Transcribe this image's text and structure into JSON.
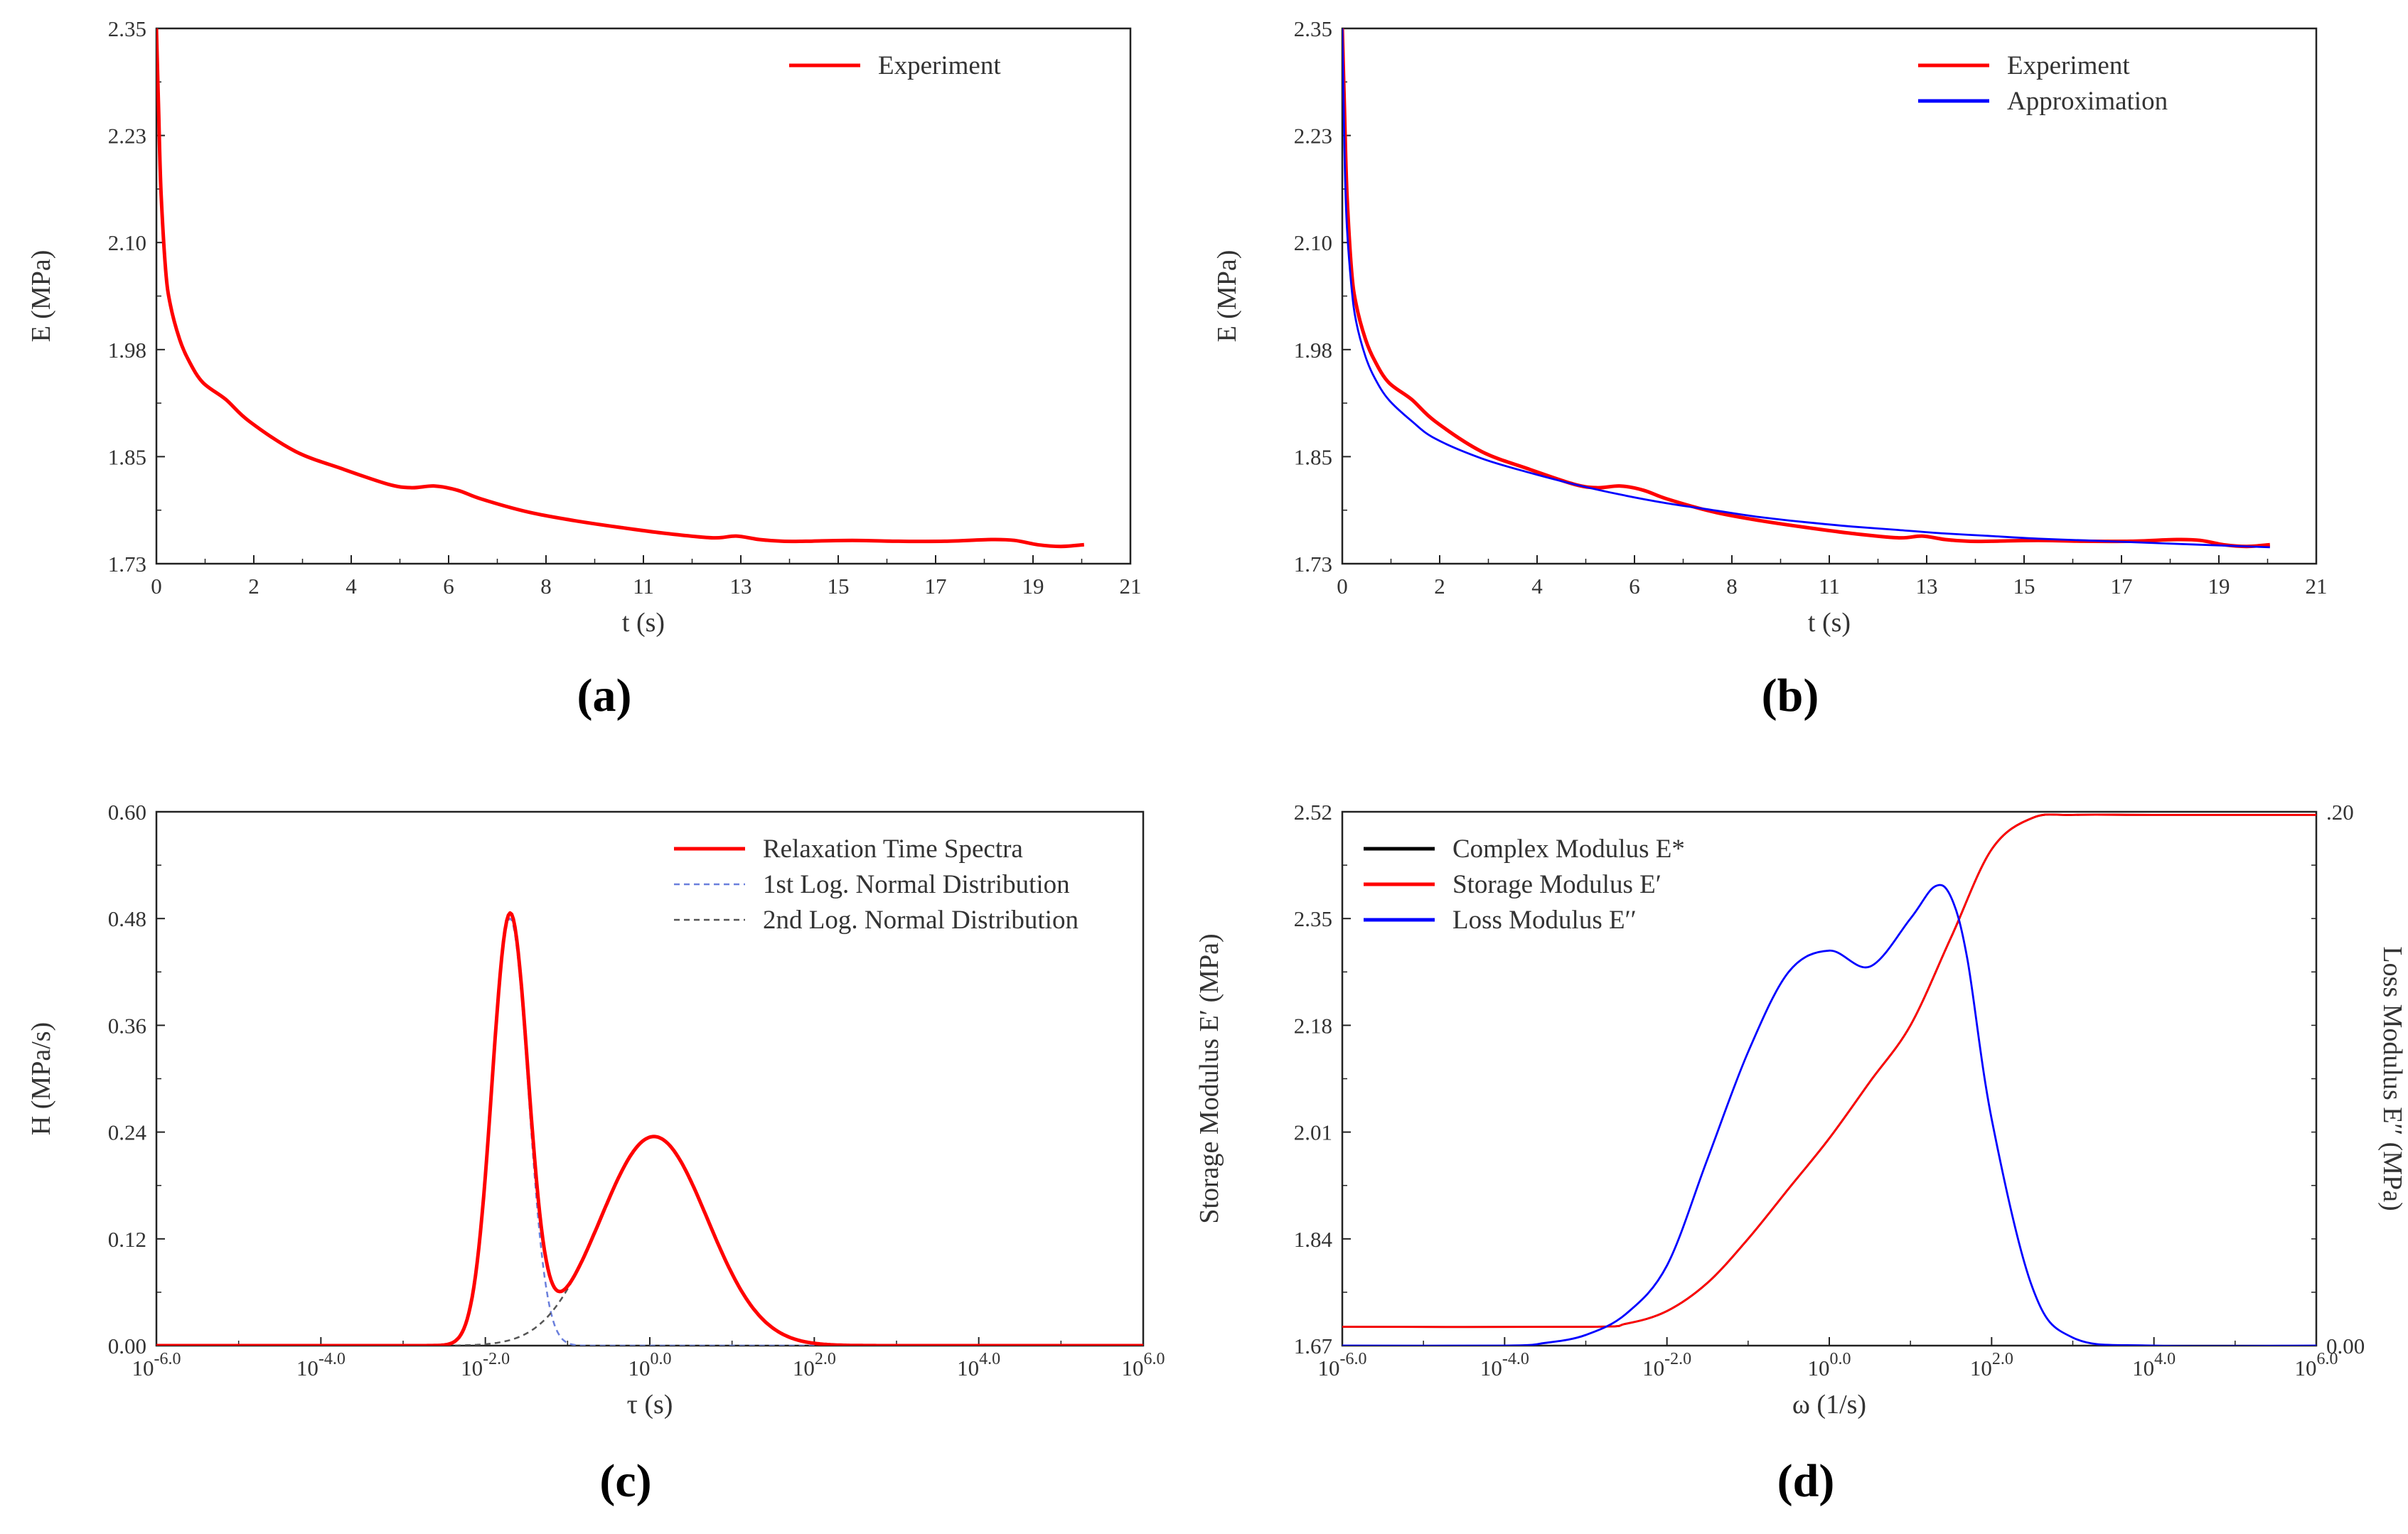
{
  "chart_data": [
    {
      "id": "a",
      "panel_label": "(a)",
      "type": "line",
      "xlabel": "t (s)",
      "ylabel": "E (MPa)",
      "xlim": [
        0,
        21
      ],
      "ylim": [
        1.73,
        2.35
      ],
      "xticks": [
        "0",
        "2",
        "4",
        "6",
        "8",
        "11",
        "13",
        "15",
        "17",
        "19",
        "21"
      ],
      "yticks": [
        "1.73",
        "1.85",
        "1.98",
        "2.10",
        "2.23",
        "2.35"
      ],
      "legend": [
        "Experiment"
      ],
      "legend_position": "top-right",
      "series": [
        {
          "name": "Experiment",
          "color": "#ff0000",
          "x": [
            0.0,
            0.05,
            0.1,
            0.2,
            0.3,
            0.5,
            0.7,
            1.0,
            1.5,
            2.0,
            3.0,
            4.0,
            5.0,
            5.5,
            6.0,
            6.5,
            7.0,
            8.0,
            9.0,
            10.0,
            11.0,
            12.0,
            12.5,
            13.0,
            13.5,
            14.0,
            15.0,
            16.0,
            17.0,
            18.0,
            18.5,
            19.0,
            19.5,
            20.0
          ],
          "y": [
            2.35,
            2.25,
            2.16,
            2.07,
            2.03,
            1.99,
            1.965,
            1.94,
            1.92,
            1.895,
            1.86,
            1.84,
            1.822,
            1.818,
            1.82,
            1.815,
            1.805,
            1.79,
            1.78,
            1.772,
            1.765,
            1.76,
            1.762,
            1.758,
            1.756,
            1.756,
            1.757,
            1.756,
            1.756,
            1.758,
            1.757,
            1.752,
            1.75,
            1.752
          ]
        }
      ]
    },
    {
      "id": "b",
      "panel_label": "(b)",
      "type": "line",
      "xlabel": "t (s)",
      "ylabel": "E (MPa)",
      "xlim": [
        0,
        21
      ],
      "ylim": [
        1.73,
        2.35
      ],
      "xticks": [
        "0",
        "2",
        "4",
        "6",
        "8",
        "11",
        "13",
        "15",
        "17",
        "19",
        "21"
      ],
      "yticks": [
        "1.73",
        "1.85",
        "1.98",
        "2.10",
        "2.23",
        "2.35"
      ],
      "legend": [
        "Experiment",
        "Approximation"
      ],
      "legend_position": "top-right",
      "series": [
        {
          "name": "Experiment",
          "color": "#ff0000",
          "x": [
            0.0,
            0.05,
            0.1,
            0.2,
            0.3,
            0.5,
            0.7,
            1.0,
            1.5,
            2.0,
            3.0,
            4.0,
            5.0,
            5.5,
            6.0,
            6.5,
            7.0,
            8.0,
            9.0,
            10.0,
            11.0,
            12.0,
            12.5,
            13.0,
            13.5,
            14.0,
            15.0,
            16.0,
            17.0,
            18.0,
            18.5,
            19.0,
            19.5,
            20.0
          ],
          "y": [
            2.35,
            2.25,
            2.16,
            2.07,
            2.03,
            1.99,
            1.965,
            1.94,
            1.92,
            1.895,
            1.86,
            1.84,
            1.822,
            1.818,
            1.82,
            1.815,
            1.805,
            1.79,
            1.78,
            1.772,
            1.765,
            1.76,
            1.762,
            1.758,
            1.756,
            1.756,
            1.757,
            1.756,
            1.756,
            1.758,
            1.757,
            1.752,
            1.75,
            1.752
          ]
        },
        {
          "name": "Approximation",
          "color": "#0000ff",
          "x": [
            0.0,
            0.05,
            0.1,
            0.2,
            0.3,
            0.5,
            0.7,
            1.0,
            1.5,
            2.0,
            3.0,
            4.0,
            5.0,
            6.0,
            7.0,
            8.0,
            9.0,
            10.0,
            11.0,
            12.0,
            13.0,
            14.0,
            15.0,
            16.0,
            17.0,
            18.0,
            19.0,
            20.0
          ],
          "y": [
            2.35,
            2.2,
            2.12,
            2.05,
            2.01,
            1.97,
            1.945,
            1.92,
            1.895,
            1.875,
            1.852,
            1.836,
            1.822,
            1.81,
            1.8,
            1.792,
            1.784,
            1.778,
            1.773,
            1.769,
            1.765,
            1.762,
            1.759,
            1.757,
            1.755,
            1.753,
            1.751,
            1.749
          ]
        }
      ]
    },
    {
      "id": "c",
      "panel_label": "(c)",
      "type": "line",
      "xscale": "log",
      "xlabel": "τ (s)",
      "ylabel": "H (MPa/s)",
      "xlim": [
        -6,
        6
      ],
      "ylim": [
        0,
        0.6
      ],
      "xticks": [
        "10-6.0",
        "10-4.0",
        "10-2.0",
        "100.0",
        "102.0",
        "104.0",
        "106.0"
      ],
      "yticks": [
        "0.00",
        "0.12",
        "0.24",
        "0.36",
        "0.48",
        "0.60"
      ],
      "legend": [
        "Relaxation Time Spectra",
        "1st Log. Normal Distribution",
        "2nd Log. Normal Distribution"
      ],
      "legend_position": "top-right",
      "series": [
        {
          "name": "1st Log. Normal Distribution",
          "color": "#6a7fdc",
          "style": "dashed",
          "lognormal": {
            "amplitude": 0.48,
            "center_log10": -1.7,
            "sigma_log10": 0.22
          }
        },
        {
          "name": "2nd Log. Normal Distribution",
          "color": "#555555",
          "style": "dashed",
          "lognormal": {
            "amplitude": 0.235,
            "center_log10": 0.05,
            "sigma_log10": 0.65
          }
        },
        {
          "name": "Relaxation Time Spectra",
          "color": "#ff0000",
          "style": "solid",
          "sum_of": [
            "1st Log. Normal Distribution",
            "2nd Log. Normal Distribution"
          ]
        }
      ]
    },
    {
      "id": "d",
      "panel_label": "(d)",
      "type": "line",
      "xscale": "log",
      "xlabel": "ω (1/s)",
      "ylabel": "Storage Modulus E′ (MPa)",
      "ylabel_right": "Loss Modulus E′′ (MPa)",
      "xlim": [
        -6,
        6
      ],
      "ylim": [
        1.67,
        2.52
      ],
      "ylim_right": [
        0,
        0.2
      ],
      "xticks": [
        "10-6.0",
        "10-4.0",
        "10-2.0",
        "100.0",
        "102.0",
        "104.0",
        "106.0"
      ],
      "yticks": [
        "1.67",
        "1.84",
        "2.01",
        "2.18",
        "2.35",
        "2.52"
      ],
      "yticks_right": [
        "0.00",
        ".20"
      ],
      "legend": [
        "Complex Modulus E*",
        "Storage Modulus E′",
        "Loss Modulus E′′"
      ],
      "legend_position": "top-left",
      "series": [
        {
          "name": "Complex Modulus E*",
          "color": "#000000",
          "axis": "left",
          "x_log10": [
            -6,
            -3,
            -2.5,
            -2,
            -1.5,
            -1,
            -0.5,
            0,
            0.5,
            1,
            1.5,
            2,
            2.5,
            3,
            4,
            6
          ],
          "y": [
            1.7,
            1.7,
            1.705,
            1.725,
            1.77,
            1.84,
            1.92,
            2.0,
            2.09,
            2.18,
            2.32,
            2.46,
            2.51,
            2.515,
            2.515,
            2.515
          ]
        },
        {
          "name": "Storage Modulus E′",
          "color": "#ff0000",
          "axis": "left",
          "x_log10": [
            -6,
            -3,
            -2.5,
            -2,
            -1.5,
            -1,
            -0.5,
            0,
            0.5,
            1,
            1.5,
            2,
            2.5,
            3,
            4,
            6
          ],
          "y": [
            1.7,
            1.7,
            1.705,
            1.725,
            1.77,
            1.84,
            1.92,
            2.0,
            2.09,
            2.18,
            2.32,
            2.46,
            2.51,
            2.515,
            2.515,
            2.515
          ]
        },
        {
          "name": "Loss Modulus E′′",
          "color": "#0000ff",
          "axis": "right",
          "x_log10": [
            -6,
            -4,
            -3.5,
            -3,
            -2.5,
            -2,
            -1.5,
            -1,
            -0.5,
            0,
            0.5,
            1,
            1.3,
            1.5,
            1.7,
            2,
            2.5,
            3,
            4,
            6
          ],
          "y": [
            0,
            0,
            0.001,
            0.004,
            0.012,
            0.03,
            0.07,
            0.11,
            0.14,
            0.148,
            0.142,
            0.16,
            0.172,
            0.168,
            0.145,
            0.085,
            0.022,
            0.003,
            0,
            0
          ]
        }
      ]
    }
  ]
}
